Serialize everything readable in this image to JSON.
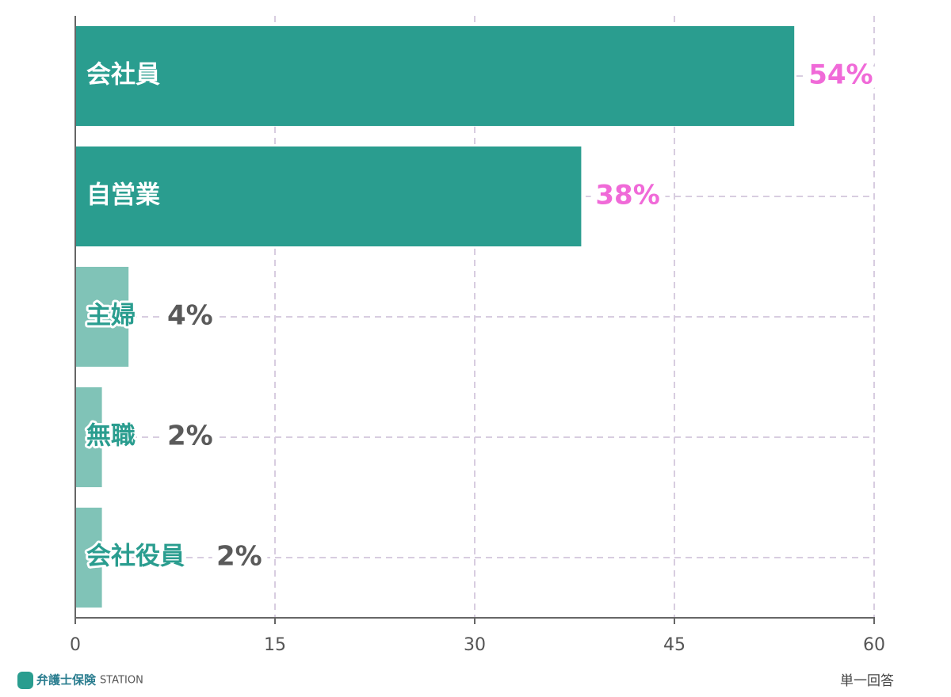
{
  "chart_data": {
    "type": "bar",
    "orientation": "horizontal",
    "categories": [
      "会社員",
      "自営業",
      "主婦",
      "無職",
      "会社役員"
    ],
    "values": [
      54,
      38,
      4,
      2,
      2
    ],
    "value_labels": [
      "54%",
      "38%",
      "4%",
      "2%",
      "2%"
    ],
    "colors": [
      "#2a9d8f",
      "#2a9d8f",
      "#80c3b7",
      "#80c3b7",
      "#80c3b7"
    ],
    "label_colors": [
      "#f06ad8",
      "#f06ad8",
      "#5a5a5a",
      "#5a5a5a",
      "#5a5a5a"
    ],
    "xlim": [
      0,
      60
    ],
    "xticks": [
      0,
      15,
      30,
      45,
      60
    ],
    "grid": true,
    "note": "単一回答"
  },
  "logo": {
    "name": "弁護士保険",
    "suffix": "STATION"
  }
}
